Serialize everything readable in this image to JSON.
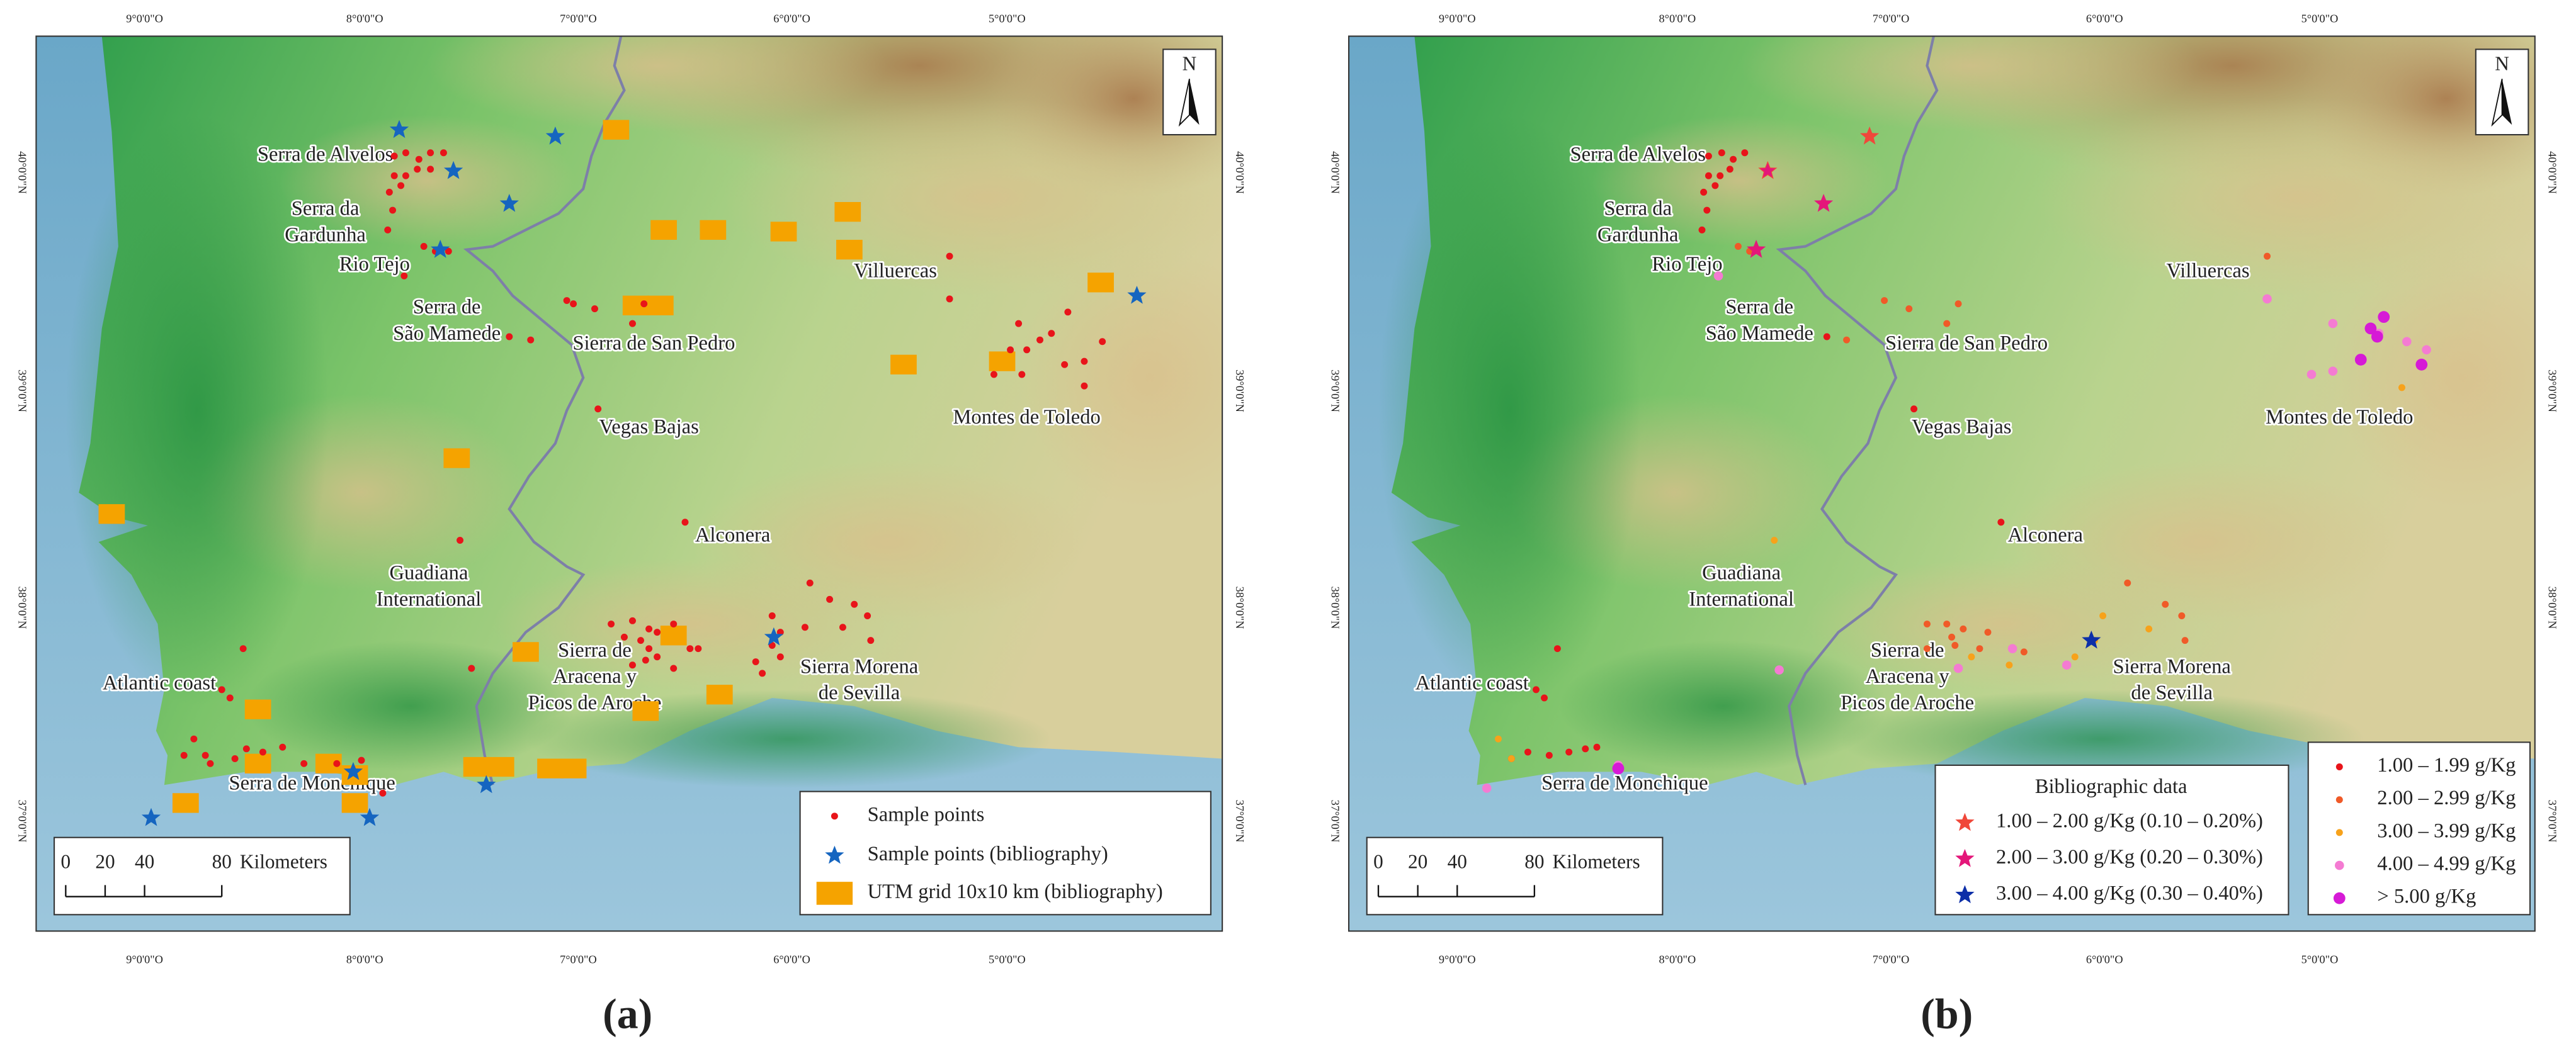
{
  "longitudes": [
    "9°0'0\"O",
    "8°0'0\"O",
    "7°0'0\"O",
    "6°0'0\"O",
    "5°0'0\"O"
  ],
  "latitudes": [
    "40°0'0\"N",
    "39°0'0\"N",
    "38°0'0\"N",
    "37°0'0\"N"
  ],
  "north": "N",
  "scale": {
    "ticks": [
      "0",
      "20",
      "40",
      "80"
    ],
    "unit": "Kilometers"
  },
  "places": [
    [
      "Serra de Alvelos"
    ],
    [
      "Serra da",
      "Gardunha"
    ],
    [
      "Rio Tejo"
    ],
    [
      "Serra de",
      "São Mamede"
    ],
    [
      "Sierra de San Pedro"
    ],
    [
      "Villuercas"
    ],
    [
      "Montes de Toledo"
    ],
    [
      "Vegas Bajas"
    ],
    [
      "Alconera"
    ],
    [
      "Guadiana",
      "International"
    ],
    [
      "Sierra de",
      "Aracena y",
      "Picos de Aroche"
    ],
    [
      "Sierra Morena",
      "de Sevilla"
    ],
    [
      "Atlantic coast"
    ],
    [
      "Serra de Monchique"
    ]
  ],
  "panels": [
    {
      "label": "(a)",
      "legend": [
        "Sample points",
        "Sample points (bibliography)",
        "UTM grid 10x10 km (bibliography)"
      ]
    },
    {
      "label": "(b)",
      "bibliographic_legend": {
        "title": "Bibliographic data",
        "items": [
          "1.00 – 2.00 g/Kg (0.10 – 0.20%)",
          "2.00 – 3.00 g/Kg (0.20 – 0.30%)",
          "3.00 – 4.00 g/Kg (0.30 – 0.40%)"
        ]
      },
      "concentration_legend": [
        "1.00 – 1.99 g/Kg",
        "2.00 – 2.99 g/Kg",
        "3.00 – 3.99 g/Kg",
        "4.00 – 4.99 g/Kg",
        "> 5.00 g/Kg"
      ]
    }
  ]
}
